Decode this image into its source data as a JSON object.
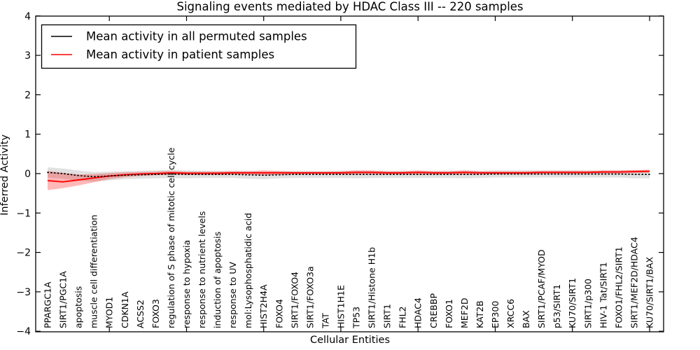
{
  "title": "Signaling events mediated by HDAC Class III -- 220 samples",
  "legend": {
    "entries": [
      {
        "label": "Mean activity in all permuted samples",
        "color": "#000000",
        "linestyle": "dotted"
      },
      {
        "label": "Mean activity in patient samples",
        "color": "#ff0000",
        "linestyle": "solid"
      }
    ],
    "position": "upper left"
  },
  "chart_data": {
    "type": "line",
    "title": "Signaling events mediated by HDAC Class III -- 220 samples",
    "xlabel": "Cellular Entities",
    "ylabel": "Inferred Activity",
    "ylim": [
      -4,
      4
    ],
    "yticks": [
      4,
      3,
      2,
      1,
      0,
      -1,
      -2,
      -3,
      -4
    ],
    "ytick_labels": [
      "4",
      "3",
      "2",
      "1",
      "0",
      "−1",
      "−2",
      "−3",
      "−4"
    ],
    "grid": false,
    "legend_position": "upper left",
    "categories": [
      "PPARGC1A",
      "SIRT1/PGC1A",
      "apoptosis",
      "muscle cell differentiation",
      "MYOD1",
      "CDKN1A",
      "ACSS2",
      "FOXO3",
      "regulation of S phase of mitotic cell cycle",
      "response to hypoxia",
      "response to nutrient levels",
      "induction of apoptosis",
      "response to UV",
      "mol:Lysophosphatidic acid",
      "HIST2H4A",
      "FOXO4",
      "SIRT1/FOXO4",
      "SIRT1/FOXO3a",
      "TAT",
      "HIST1H1E",
      "TP53",
      "SIRT1/Histone H1b",
      "SIRT1",
      "FHL2",
      "HDAC4",
      "CREBBP",
      "FOXO1",
      "MEF2D",
      "KAT2B",
      "EP300",
      "XRCC6",
      "BAX",
      "SIRT1/PCAF/MYOD",
      "p53/SIRT1",
      "KU70/SIRT1",
      "SIRT1/p300",
      "HIV-1 Tat/SIRT1",
      "FOXO1/FHL2/SIRT1",
      "SIRT1/MEF2D/HDAC4",
      "KU70/SIRT1/BAX"
    ],
    "series": [
      {
        "name": "Mean activity in all permuted samples",
        "color": "#000000",
        "linestyle": "dotted",
        "band_color": "#aaaaaa",
        "band_alpha": 0.35,
        "values": [
          0.03,
          0.0,
          -0.05,
          -0.08,
          -0.06,
          -0.04,
          -0.03,
          -0.02,
          -0.01,
          -0.02,
          -0.02,
          -0.02,
          -0.02,
          -0.03,
          -0.04,
          -0.03,
          -0.02,
          -0.02,
          -0.02,
          -0.02,
          -0.02,
          -0.02,
          -0.02,
          -0.02,
          -0.02,
          -0.02,
          -0.02,
          -0.02,
          -0.02,
          -0.01,
          -0.01,
          -0.01,
          -0.01,
          -0.01,
          -0.01,
          -0.01,
          -0.01,
          -0.01,
          -0.02,
          -0.02
        ],
        "band_upper": [
          0.16,
          0.13,
          0.08,
          0.04,
          0.05,
          0.06,
          0.07,
          0.08,
          0.09,
          0.08,
          0.07,
          0.07,
          0.07,
          0.07,
          0.06,
          0.06,
          0.07,
          0.07,
          0.07,
          0.07,
          0.08,
          0.07,
          0.07,
          0.07,
          0.07,
          0.07,
          0.07,
          0.08,
          0.07,
          0.08,
          0.08,
          0.08,
          0.08,
          0.08,
          0.08,
          0.08,
          0.08,
          0.08,
          0.08,
          0.08
        ],
        "band_lower": [
          -0.1,
          -0.13,
          -0.18,
          -0.2,
          -0.17,
          -0.14,
          -0.13,
          -0.12,
          -0.11,
          -0.12,
          -0.11,
          -0.11,
          -0.11,
          -0.13,
          -0.14,
          -0.12,
          -0.11,
          -0.11,
          -0.11,
          -0.11,
          -0.12,
          -0.11,
          -0.11,
          -0.11,
          -0.11,
          -0.11,
          -0.11,
          -0.12,
          -0.11,
          -0.1,
          -0.1,
          -0.1,
          -0.1,
          -0.1,
          -0.1,
          -0.1,
          -0.1,
          -0.1,
          -0.12,
          -0.12
        ]
      },
      {
        "name": "Mean activity in patient samples",
        "color": "#ff0000",
        "linestyle": "solid",
        "band_color": "#ff0000",
        "band_alpha": 0.28,
        "values": [
          -0.18,
          -0.21,
          -0.16,
          -0.11,
          -0.06,
          -0.03,
          -0.01,
          0.0,
          0.02,
          0.01,
          0.01,
          0.01,
          0.02,
          0.02,
          0.02,
          0.02,
          0.02,
          0.02,
          0.02,
          0.02,
          0.03,
          0.03,
          0.02,
          0.02,
          0.03,
          0.02,
          0.02,
          0.03,
          0.02,
          0.02,
          0.02,
          0.02,
          0.03,
          0.03,
          0.03,
          0.03,
          0.04,
          0.04,
          0.05,
          0.06
        ],
        "band_upper": [
          0.07,
          0.02,
          -0.02,
          -0.01,
          0.01,
          0.03,
          0.04,
          0.05,
          0.07,
          0.05,
          0.05,
          0.05,
          0.06,
          0.06,
          0.08,
          0.07,
          0.05,
          0.05,
          0.05,
          0.06,
          0.08,
          0.08,
          0.06,
          0.06,
          0.08,
          0.06,
          0.06,
          0.08,
          0.06,
          0.06,
          0.06,
          0.06,
          0.07,
          0.07,
          0.07,
          0.07,
          0.08,
          0.08,
          0.09,
          0.1
        ],
        "band_lower": [
          -0.42,
          -0.37,
          -0.3,
          -0.22,
          -0.14,
          -0.09,
          -0.06,
          -0.04,
          -0.03,
          -0.03,
          -0.03,
          -0.03,
          -0.02,
          -0.02,
          -0.04,
          -0.03,
          -0.02,
          -0.01,
          -0.01,
          -0.02,
          -0.02,
          -0.02,
          -0.02,
          -0.02,
          -0.02,
          -0.02,
          -0.02,
          -0.02,
          -0.02,
          -0.02,
          -0.02,
          -0.02,
          -0.01,
          -0.01,
          -0.01,
          -0.01,
          0.0,
          0.0,
          0.01,
          0.02
        ]
      }
    ]
  }
}
